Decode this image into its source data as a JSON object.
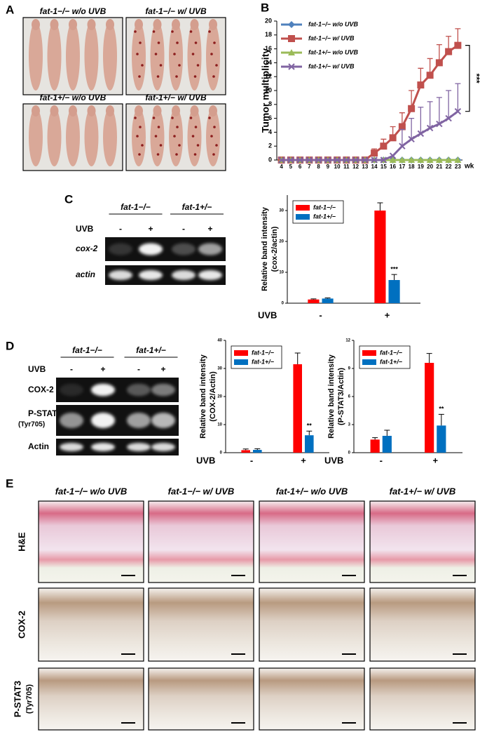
{
  "panel_letters": {
    "a": "A",
    "b": "B",
    "c": "C",
    "d": "D",
    "e": "E"
  },
  "panel_a": {
    "labels": [
      "fat-1−/− w/o UVB",
      "fat-1−/− w/ UVB",
      "fat-1+/− w/o UVB",
      "fat-1+/− w/ UVB"
    ]
  },
  "panel_c_blot": {
    "groups": [
      "fat-1−/−",
      "fat-1+/−"
    ],
    "treatment": "UVB",
    "lanes": [
      "-",
      "+",
      "-",
      "+"
    ],
    "rows": [
      "cox-2",
      "actin"
    ]
  },
  "panel_d_blot": {
    "groups": [
      "fat-1−/−",
      "fat-1+/−"
    ],
    "treatment": "UVB",
    "lanes": [
      "-",
      "+",
      "-",
      "+"
    ],
    "rows": [
      "COX-2",
      "P-STAT3",
      "Actin"
    ],
    "row_note": "(Tyr705)"
  },
  "panel_e": {
    "columns": [
      "fat-1−/− w/o UVB",
      "fat-1−/− w/ UVB",
      "fat-1+/− w/o UVB",
      "fat-1+/− w/ UVB"
    ],
    "rows": [
      "H&E",
      "COX-2",
      "P-STAT3"
    ],
    "row_note": "(Tyr705)"
  },
  "chart_data": [
    {
      "type": "line",
      "ylabel": "Tumor multiplicity",
      "categories": [
        "4",
        "5",
        "6",
        "7",
        "8",
        "9",
        "10",
        "11",
        "12",
        "13",
        "14",
        "15",
        "16",
        "17",
        "18",
        "19",
        "20",
        "21",
        "22",
        "23"
      ],
      "x_unit": "wk",
      "ylim": [
        0,
        20
      ],
      "yticks": [
        0,
        2,
        4,
        6,
        8,
        10,
        12,
        14,
        16,
        18,
        20
      ],
      "significance": "***",
      "series": [
        {
          "name": "fat-1−/− w/o UVB",
          "color": "#4f81bd",
          "marker": "diamond",
          "values": [
            0,
            0,
            0,
            0,
            0,
            0,
            0,
            0,
            0,
            0,
            0,
            0,
            0,
            0,
            0,
            0,
            0,
            0,
            0,
            0
          ],
          "errors": [
            null,
            null,
            null,
            null,
            null,
            null,
            null,
            null,
            null,
            null,
            null,
            null,
            null,
            null,
            null,
            null,
            null,
            null,
            null,
            null
          ]
        },
        {
          "name": "fat-1−/− w/ UVB",
          "color": "#c0504d",
          "marker": "square",
          "values": [
            0,
            0,
            0,
            0,
            0,
            0,
            0,
            0,
            0,
            0,
            1,
            2,
            3.2,
            4.8,
            7.4,
            10.8,
            12.2,
            14,
            15.6,
            16.5
          ],
          "errors": [
            null,
            null,
            null,
            null,
            null,
            null,
            null,
            null,
            null,
            null,
            0.6,
            1,
            1.6,
            2,
            2.6,
            2.4,
            2.4,
            2.6,
            2.2,
            2.4
          ]
        },
        {
          "name": "fat-1+/− w/o UVB",
          "color": "#9bbb59",
          "marker": "triangle",
          "values": [
            0,
            0,
            0,
            0,
            0,
            0,
            0,
            0,
            0,
            0,
            0,
            0,
            0,
            0,
            0,
            0,
            0,
            0,
            0,
            0
          ],
          "errors": [
            null,
            null,
            null,
            null,
            null,
            null,
            null,
            null,
            null,
            null,
            null,
            null,
            null,
            null,
            null,
            null,
            null,
            null,
            null,
            null
          ]
        },
        {
          "name": "fat-1+/− w/ UVB",
          "color": "#8064a2",
          "marker": "x",
          "values": [
            0,
            0,
            0,
            0,
            0,
            0,
            0,
            0,
            0,
            0,
            0,
            0,
            0.6,
            2,
            3,
            3.8,
            4.6,
            5.2,
            6,
            7
          ],
          "errors": [
            null,
            null,
            null,
            null,
            null,
            null,
            null,
            null,
            null,
            null,
            null,
            null,
            null,
            2.4,
            3,
            3.8,
            3.8,
            3.8,
            4,
            4
          ]
        }
      ]
    },
    {
      "type": "bar",
      "ylabel": [
        "Relative band intensity",
        "(cox-2/actin)"
      ],
      "x_label": "UVB",
      "categories": [
        "-",
        "+"
      ],
      "ylim": [
        0,
        35
      ],
      "yticks": [
        0,
        10,
        20,
        30
      ],
      "significance": "***",
      "series": [
        {
          "name": "fat-1−/−",
          "color": "#ff0000",
          "values": [
            1.2,
            30
          ],
          "errors": [
            0.2,
            2.5
          ]
        },
        {
          "name": "fat-1+/−",
          "color": "#0070c0",
          "values": [
            1.5,
            7.5
          ],
          "errors": [
            0.2,
            1.8
          ]
        }
      ]
    },
    {
      "type": "bar",
      "ylabel": [
        "Relative band intensity",
        "(COX-2/Actin)"
      ],
      "x_label": "UVB",
      "categories": [
        "-",
        "+"
      ],
      "ylim": [
        0,
        40
      ],
      "yticks": [
        0,
        10,
        20,
        30,
        40
      ],
      "significance": "**",
      "series": [
        {
          "name": "fat-1−/−",
          "color": "#ff0000",
          "values": [
            0.9,
            31.5
          ],
          "errors": [
            0.4,
            4
          ]
        },
        {
          "name": "fat-1+/−",
          "color": "#0070c0",
          "values": [
            1.0,
            6.2
          ],
          "errors": [
            0.4,
            1.5
          ]
        }
      ]
    },
    {
      "type": "bar",
      "ylabel": [
        "Relative band intensity",
        "(P-STAT3/Actin)"
      ],
      "x_label": "UVB",
      "categories": [
        "-",
        "+"
      ],
      "ylim": [
        0,
        12
      ],
      "yticks": [
        0,
        3,
        6,
        9,
        12
      ],
      "significance": "**",
      "series": [
        {
          "name": "fat-1−/−",
          "color": "#ff0000",
          "values": [
            1.4,
            9.6
          ],
          "errors": [
            0.2,
            1.0
          ]
        },
        {
          "name": "fat-1+/−",
          "color": "#0070c0",
          "values": [
            1.8,
            2.9
          ],
          "errors": [
            0.6,
            1.2
          ]
        }
      ]
    }
  ]
}
